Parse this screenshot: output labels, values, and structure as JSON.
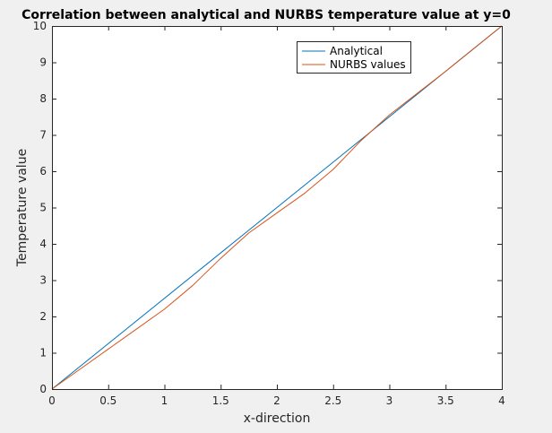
{
  "chart_data": {
    "type": "line",
    "title": "Correlation between analytical and NURBS temperature value at y=0",
    "xlabel": "x-direction",
    "ylabel": "Temperature value",
    "xlim": [
      0,
      4
    ],
    "ylim": [
      0,
      10
    ],
    "xticks": [
      0,
      0.5,
      1,
      1.5,
      2,
      2.5,
      3,
      3.5,
      4
    ],
    "xtick_labels": [
      "0",
      "0.5",
      "1",
      "1.5",
      "2",
      "2.5",
      "3",
      "3.5",
      "4"
    ],
    "yticks": [
      0,
      1,
      2,
      3,
      4,
      5,
      6,
      7,
      8,
      9,
      10
    ],
    "ytick_labels": [
      "0",
      "1",
      "2",
      "3",
      "4",
      "5",
      "6",
      "7",
      "8",
      "9",
      "10"
    ],
    "grid": false,
    "legend_position": "top-right",
    "series": [
      {
        "name": "Analytical",
        "color": "#0072bd",
        "x": [
          0,
          4
        ],
        "y": [
          0,
          10
        ]
      },
      {
        "name": "NURBS values",
        "color": "#d95319",
        "x": [
          0,
          0.25,
          0.5,
          0.75,
          1,
          1.25,
          1.5,
          1.75,
          2,
          2.25,
          2.5,
          2.75,
          3,
          3.25,
          3.5,
          3.75,
          4
        ],
        "y": [
          0,
          0.55,
          1.1,
          1.65,
          2.2,
          2.85,
          3.6,
          4.3,
          4.85,
          5.4,
          6.05,
          6.85,
          7.55,
          8.15,
          8.75,
          9.38,
          10
        ]
      }
    ]
  }
}
